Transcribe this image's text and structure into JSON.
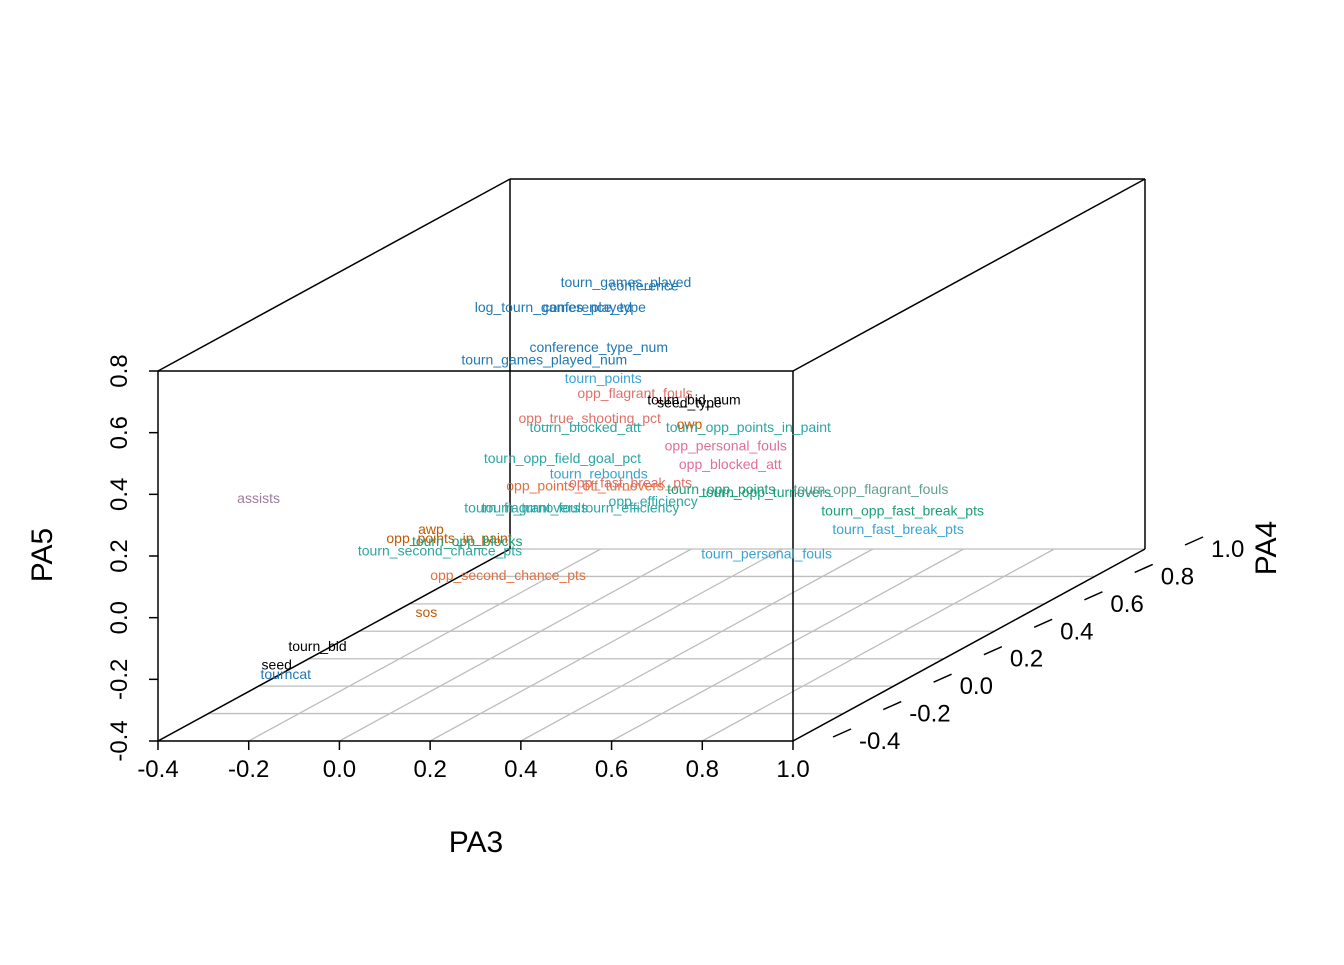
{
  "chart_data": {
    "type": "scatter",
    "title": "",
    "xlabel": "PA3",
    "ylabel": "PA4",
    "zlabel": "PA5",
    "xlim": [
      -0.4,
      1.0
    ],
    "ylim": [
      -0.4,
      1.0
    ],
    "zlim": [
      -0.4,
      0.8
    ],
    "x_ticks": [
      "-0.4",
      "-0.2",
      "0.0",
      "0.2",
      "0.4",
      "0.6",
      "0.8",
      "1.0"
    ],
    "y_ticks": [
      "-0.4",
      "-0.2",
      "0.0",
      "0.2",
      "0.4",
      "0.6",
      "0.8",
      "1.0"
    ],
    "z_ticks": [
      "-0.4",
      "-0.2",
      "0.0",
      "0.2",
      "0.4",
      "0.6",
      "0.8"
    ],
    "grid": "floor",
    "points": [
      {
        "label": "tourn_games_played",
        "x": 0.41,
        "y": 0.0,
        "z": 0.91,
        "color": "#1F78B4"
      },
      {
        "label": "conference",
        "x": 0.45,
        "y": 0.0,
        "z": 0.9,
        "color": "#1F78B4"
      },
      {
        "label": "log_tourn_games_played",
        "x": 0.25,
        "y": 0.0,
        "z": 0.83,
        "color": "#1F78B4"
      },
      {
        "label": "conference_type",
        "x": 0.34,
        "y": 0.0,
        "z": 0.83,
        "color": "#1F78B4"
      },
      {
        "label": "conference_type_num",
        "x": 0.35,
        "y": 0.0,
        "z": 0.7,
        "color": "#1F78B4"
      },
      {
        "label": "tourn_games_played_num",
        "x": 0.23,
        "y": 0.0,
        "z": 0.66,
        "color": "#1F78B4"
      },
      {
        "label": "tourn_points",
        "x": 0.36,
        "y": 0.0,
        "z": 0.6,
        "color": "#3BA3D0"
      },
      {
        "label": "opp_flagrant_fouls",
        "x": 0.43,
        "y": 0.0,
        "z": 0.55,
        "color": "#E0706A"
      },
      {
        "label": "tourn_bid_num",
        "x": 0.56,
        "y": 0.0,
        "z": 0.53,
        "color": "#000000"
      },
      {
        "label": "seed_type",
        "x": 0.55,
        "y": 0.0,
        "z": 0.52,
        "color": "#000000"
      },
      {
        "label": "opp_true_shooting_pct",
        "x": 0.33,
        "y": 0.0,
        "z": 0.47,
        "color": "#E0706A"
      },
      {
        "label": "owp",
        "x": 0.55,
        "y": 0.0,
        "z": 0.45,
        "color": "#C05A00"
      },
      {
        "label": "tourn_blocked_att",
        "x": 0.32,
        "y": 0.0,
        "z": 0.44,
        "color": "#2CA6A4"
      },
      {
        "label": "tourn_opp_points_in_paint",
        "x": 0.68,
        "y": 0.0,
        "z": 0.44,
        "color": "#2CA6A4"
      },
      {
        "label": "opp_personal_fouls",
        "x": 0.63,
        "y": 0.0,
        "z": 0.38,
        "color": "#E06E9A"
      },
      {
        "label": "opp_blocked_att",
        "x": 0.64,
        "y": 0.0,
        "z": 0.32,
        "color": "#E06E9A"
      },
      {
        "label": "tourn_opp_field_goal_pct",
        "x": 0.27,
        "y": 0.0,
        "z": 0.34,
        "color": "#2CA6A4"
      },
      {
        "label": "tourn_rebounds",
        "x": 0.35,
        "y": 0.0,
        "z": 0.29,
        "color": "#3BA3D0"
      },
      {
        "label": "opp_fast_break_pts",
        "x": 0.42,
        "y": 0.0,
        "z": 0.26,
        "color": "#E0706A"
      },
      {
        "label": "opp_points_off_turnovers",
        "x": 0.32,
        "y": 0.0,
        "z": 0.25,
        "color": "#E07040"
      },
      {
        "label": "tourn_efficiency",
        "x": 0.42,
        "y": 0.0,
        "z": 0.18,
        "color": "#2CA6A4"
      },
      {
        "label": "tourn_opp_points",
        "x": 0.62,
        "y": 0.0,
        "z": 0.24,
        "color": "#1B9E77"
      },
      {
        "label": "tourn_opp_turnovers",
        "x": 0.72,
        "y": 0.0,
        "z": 0.23,
        "color": "#1B9E77"
      },
      {
        "label": "opp_efficiency",
        "x": 0.47,
        "y": 0.0,
        "z": 0.2,
        "color": "#2CA6A4"
      },
      {
        "label": "assists",
        "x": -0.4,
        "y": 0.0,
        "z": 0.21,
        "color": "#A07BA0"
      },
      {
        "label": "tourn_flagrant_fouls",
        "x": 0.19,
        "y": 0.0,
        "z": 0.18,
        "color": "#2CA6A4"
      },
      {
        "label": "tourn_turnovers",
        "x": 0.2,
        "y": 0.0,
        "z": 0.18,
        "color": "#2CA6A4"
      },
      {
        "label": "awp",
        "x": -0.02,
        "y": 0.0,
        "z": 0.11,
        "color": "#C05A00"
      },
      {
        "label": "opp_points_in_paint",
        "x": 0.02,
        "y": 0.0,
        "z": 0.08,
        "color": "#C05A00"
      },
      {
        "label": "tourn_opp_blocks",
        "x": 0.06,
        "y": 0.0,
        "z": 0.07,
        "color": "#1B9E77"
      },
      {
        "label": "tourn_second_chance_pts",
        "x": 0.0,
        "y": 0.0,
        "z": 0.04,
        "color": "#2CA6A4"
      },
      {
        "label": "opp_second_chance_pts",
        "x": 0.15,
        "y": 0.0,
        "z": -0.04,
        "color": "#E07040"
      },
      {
        "label": "tourn_personal_fouls",
        "x": 0.72,
        "y": 0.0,
        "z": 0.03,
        "color": "#3BA3D0"
      },
      {
        "label": "tourn_opp_flagrant_fouls",
        "x": 0.95,
        "y": 0.0,
        "z": 0.24,
        "color": "#5FA090"
      },
      {
        "label": "tourn_opp_fast_break_pts",
        "x": 1.02,
        "y": 0.0,
        "z": 0.17,
        "color": "#1B9E77"
      },
      {
        "label": "tourn_fast_break_pts",
        "x": 1.01,
        "y": 0.0,
        "z": 0.11,
        "color": "#3BA3D0"
      },
      {
        "label": "sos",
        "x": -0.03,
        "y": 0.0,
        "z": -0.16,
        "color": "#C05A00"
      },
      {
        "label": "tourn_bid",
        "x": -0.27,
        "y": 0.0,
        "z": -0.27,
        "color": "#000000"
      },
      {
        "label": "seed",
        "x": -0.36,
        "y": 0.0,
        "z": -0.33,
        "color": "#000000"
      },
      {
        "label": "tourncat",
        "x": -0.34,
        "y": 0.0,
        "z": -0.36,
        "color": "#1F78B4"
      }
    ]
  }
}
